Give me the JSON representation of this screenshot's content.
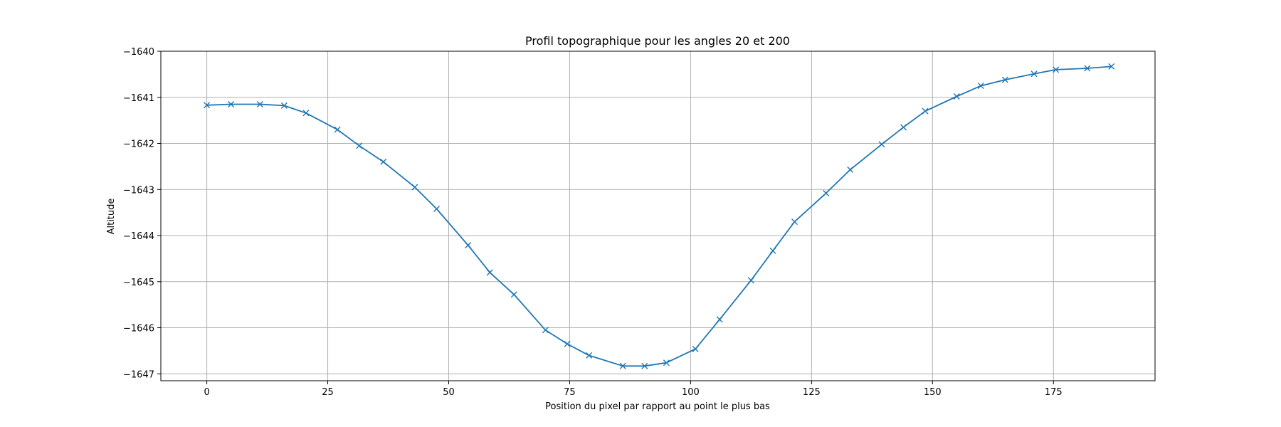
{
  "chart_data": {
    "type": "line",
    "title": "Profil topographique pour les angles 20 et 200",
    "xlabel": "Position du pixel par rapport au point le plus bas",
    "ylabel": "Altitude",
    "xlim": [
      -9.5,
      196
    ],
    "ylim": [
      -1647.15,
      -1640
    ],
    "xticks": [
      0,
      25,
      50,
      75,
      100,
      125,
      150,
      175
    ],
    "yticks": [
      -1640,
      -1641,
      -1642,
      -1643,
      -1644,
      -1645,
      -1646,
      -1647
    ],
    "grid": true,
    "color": "#1f77b4",
    "marker": "x",
    "series": [
      {
        "x": [
          0,
          5,
          11,
          16,
          20.5,
          27,
          31.5,
          36.5,
          43,
          47.5,
          54,
          58.5,
          63.5,
          70,
          74.5,
          79,
          86,
          90.5,
          95,
          101,
          106,
          112.5,
          117,
          121.5,
          128,
          133,
          139.5,
          144,
          148.5,
          155,
          160,
          165,
          171,
          175.5,
          182,
          187
        ],
        "y": [
          -1641.17,
          -1641.15,
          -1641.15,
          -1641.18,
          -1641.34,
          -1641.7,
          -1642.05,
          -1642.4,
          -1642.95,
          -1643.42,
          -1644.21,
          -1644.8,
          -1645.28,
          -1646.05,
          -1646.35,
          -1646.6,
          -1646.83,
          -1646.83,
          -1646.76,
          -1646.46,
          -1645.82,
          -1644.97,
          -1644.33,
          -1643.7,
          -1643.08,
          -1642.57,
          -1642.02,
          -1641.65,
          -1641.3,
          -1640.98,
          -1640.75,
          -1640.62,
          -1640.49,
          -1640.4,
          -1640.37,
          -1640.33
        ]
      }
    ]
  }
}
